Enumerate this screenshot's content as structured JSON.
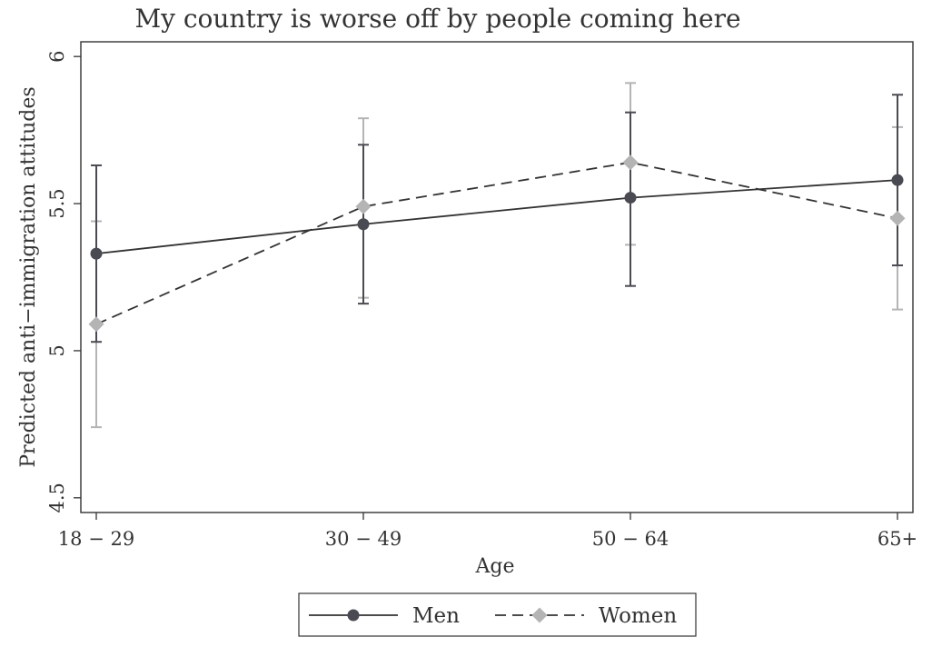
{
  "chart_data": {
    "type": "line",
    "title": "My country is worse off by people coming here",
    "xlabel": "Age",
    "ylabel": "Predicted anti−immigration attitudes",
    "categories": [
      "18 − 29",
      "30 − 49",
      "50 − 64",
      "65+"
    ],
    "ylim": [
      4.45,
      6.05
    ],
    "yticks": [
      4.5,
      5,
      5.5,
      6
    ],
    "ytick_labels": [
      "4.5",
      "5",
      "5.5",
      "6"
    ],
    "grid": false,
    "legend_position": "bottom",
    "series": [
      {
        "name": "Men",
        "values": [
          5.33,
          5.43,
          5.52,
          5.58
        ],
        "ci_low": [
          5.03,
          5.16,
          5.22,
          5.29
        ],
        "ci_high": [
          5.63,
          5.7,
          5.81,
          5.87
        ],
        "color": "#4a4a52",
        "marker": "circle",
        "line_style": "solid"
      },
      {
        "name": "Women",
        "values": [
          5.09,
          5.49,
          5.64,
          5.45
        ],
        "ci_low": [
          4.74,
          5.18,
          5.36,
          5.14
        ],
        "ci_high": [
          5.44,
          5.79,
          5.91,
          5.76
        ],
        "color": "#b4b4b4",
        "marker": "diamond",
        "line_style": "dashed"
      }
    ]
  }
}
